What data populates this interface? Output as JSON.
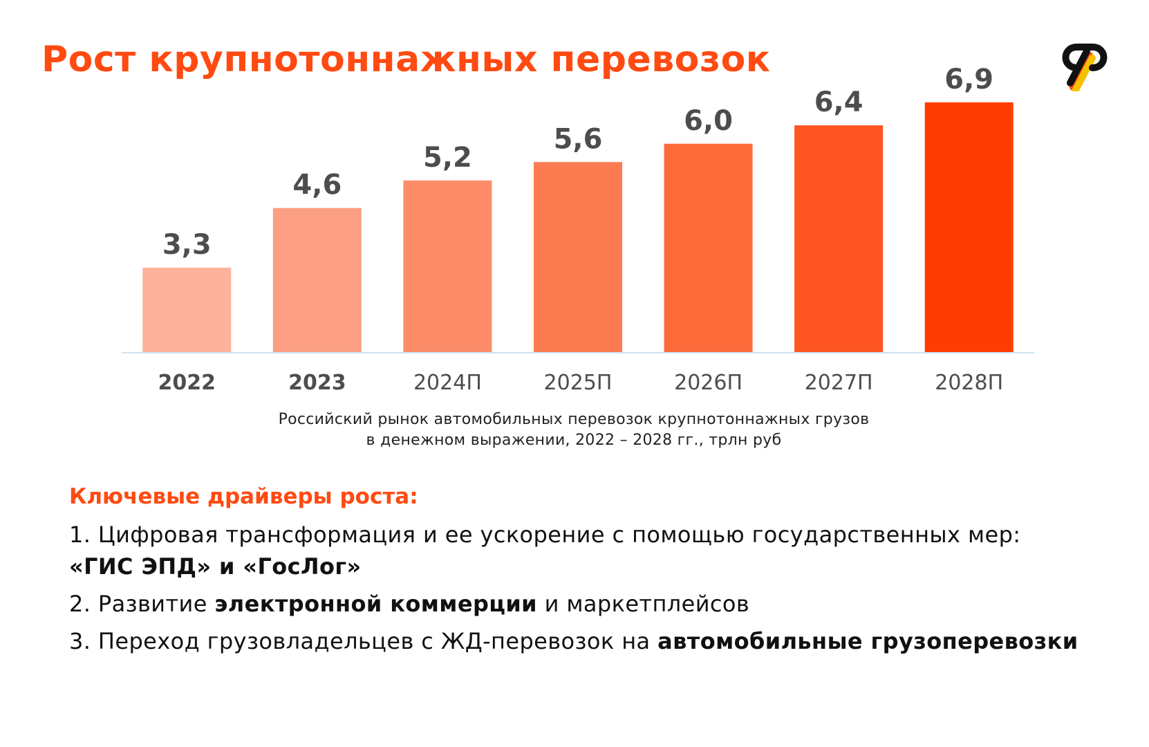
{
  "title": "Рост крупнотоннажных перевозок",
  "colors": {
    "accent": "#ff4a12",
    "bars": [
      "#feb29b",
      "#fd9f82",
      "#fd8d69",
      "#fd7b50",
      "#fe6b3b",
      "#fe5421",
      "#ff3d02"
    ],
    "axis": "#cfe3f2",
    "label": "#4d4d4d"
  },
  "logo": {
    "icon": "brand-logo-icon"
  },
  "chart_data": {
    "type": "bar",
    "categories": [
      "2022",
      "2023",
      "2024П",
      "2025П",
      "2026П",
      "2027П",
      "2028П"
    ],
    "category_bold": [
      true,
      true,
      false,
      false,
      false,
      false,
      false
    ],
    "values": [
      3.3,
      4.6,
      5.2,
      5.6,
      6.0,
      6.4,
      6.9
    ],
    "value_labels": [
      "3,3",
      "4,6",
      "5,2",
      "5,6",
      "6,0",
      "6,4",
      "6,9"
    ],
    "ylim": [
      0,
      7
    ],
    "grid": false,
    "caption_lines": [
      "Российский рынок автомобильных перевозок крупнотоннажных грузов",
      "в денежном выражении, 2022 – 2028 гг., трлн руб"
    ]
  },
  "drivers": {
    "title": "Ключевые драйверы роста:",
    "items": [
      {
        "n": "1.",
        "pre": " Цифровая трансформация и ее ускорение с помощью государственных мер:",
        "bold": "«ГИС ЭПД» и «ГосЛог»",
        "post": ""
      },
      {
        "n": "2.",
        "pre": " Развитие ",
        "bold": "электронной коммерции",
        "post": " и маркетплейсов"
      },
      {
        "n": "3.",
        "pre": " Переход грузовладельцев с ЖД-перевозок на ",
        "bold": "автомобильные грузоперевозки",
        "post": ""
      }
    ]
  }
}
